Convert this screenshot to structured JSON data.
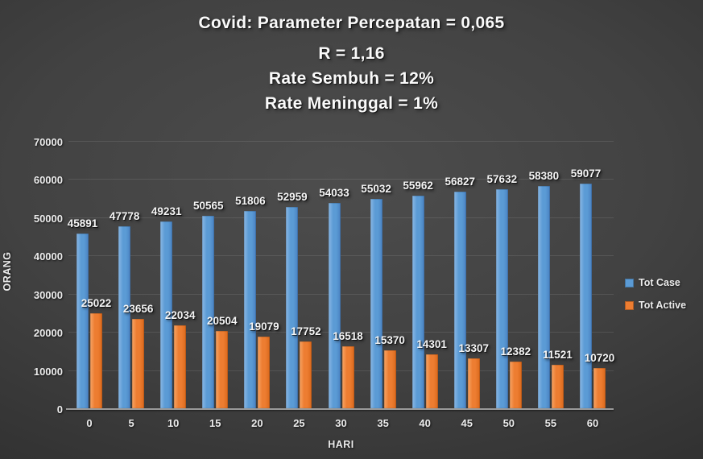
{
  "chart_data": {
    "type": "bar",
    "title_lines": [
      "Covid: Parameter Percepatan = 0,065",
      "R = 1,16",
      "Rate Sembuh = 12%",
      "Rate Meninggal = 1%"
    ],
    "categories": [
      "0",
      "5",
      "10",
      "15",
      "20",
      "25",
      "30",
      "35",
      "40",
      "45",
      "50",
      "55",
      "60"
    ],
    "series": [
      {
        "name": "Tot Case",
        "color": "#5B9BD5",
        "values": [
          45891,
          47778,
          49231,
          50565,
          51806,
          52959,
          54033,
          55032,
          55962,
          56827,
          57632,
          58380,
          59077
        ]
      },
      {
        "name": "Tot Active",
        "color": "#ED7D31",
        "values": [
          25022,
          23656,
          22034,
          20504,
          19079,
          17752,
          16518,
          15370,
          14301,
          13307,
          12382,
          11521,
          10720
        ]
      }
    ],
    "xlabel": "HARI",
    "ylabel": "ORANG",
    "ylim": [
      0,
      70000
    ],
    "ytick_step": 10000,
    "yticks": [
      "0",
      "10000",
      "20000",
      "30000",
      "40000",
      "50000",
      "60000",
      "70000"
    ],
    "legend_position": "right",
    "grid": true,
    "data_labels": true
  },
  "colors": {
    "background_center": "#4d4d4d",
    "background_edge": "#2b2b2b",
    "gridline": "rgba(255,255,255,0.10)",
    "axis_line": "#9a9a9a",
    "text": "#f0f0f0",
    "bar_case": "#5B9BD5",
    "bar_active": "#ED7D31"
  }
}
